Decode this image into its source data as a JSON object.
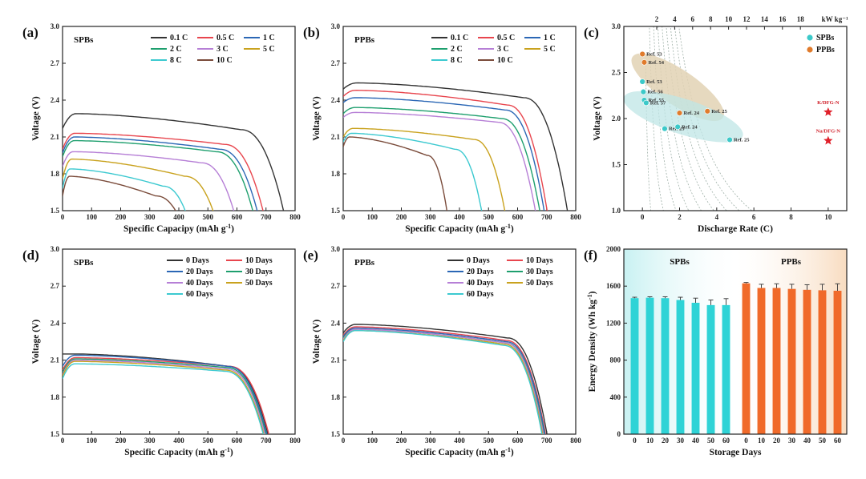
{
  "panels": [
    {
      "label": "(a)",
      "title": "SPBs",
      "type": "line",
      "xlabel": "Specific Capacipy (mAh g",
      "xlabel_sup": "-1",
      "xlabel_end": ")",
      "ylabel": "Voltage (V)",
      "xlim": [
        0,
        800
      ],
      "ylim": [
        1.5,
        3.0
      ],
      "xticks": [
        "0",
        "100",
        "200",
        "300",
        "400",
        "500",
        "600",
        "700",
        "800"
      ],
      "yticks": [
        "1.5",
        "1.8",
        "2.1",
        "2.4",
        "2.7",
        "3.0"
      ],
      "legend_cols": 3,
      "series": [
        {
          "name": "0.1 C",
          "color": "#333333",
          "vstart": 2.17,
          "vpeak": 2.29,
          "vend": 2.16,
          "capacity": 765
        },
        {
          "name": "0.5 C",
          "color": "#e8464e",
          "vstart": 2.0,
          "vpeak": 2.13,
          "vend": 2.04,
          "capacity": 695
        },
        {
          "name": "1 C",
          "color": "#2b67b5",
          "vstart": 1.97,
          "vpeak": 2.1,
          "vend": 2.0,
          "capacity": 675
        },
        {
          "name": "2 C",
          "color": "#1e9f6e",
          "vstart": 1.94,
          "vpeak": 2.07,
          "vend": 1.98,
          "capacity": 660
        },
        {
          "name": "3 C",
          "color": "#b67fd6",
          "vstart": 1.86,
          "vpeak": 1.98,
          "vend": 1.89,
          "capacity": 595
        },
        {
          "name": "5 C",
          "color": "#c9a21e",
          "vstart": 1.76,
          "vpeak": 1.92,
          "vend": 1.78,
          "capacity": 525
        },
        {
          "name": "8 C",
          "color": "#3cc9d0",
          "vstart": 1.68,
          "vpeak": 1.84,
          "vend": 1.7,
          "capacity": 430
        },
        {
          "name": "10 C",
          "color": "#7a4b3a",
          "vstart": 1.62,
          "vpeak": 1.78,
          "vend": 1.62,
          "capacity": 400
        }
      ]
    },
    {
      "label": "(b)",
      "title": "PPBs",
      "type": "line",
      "xlabel": "Specific Capacity (mAh g",
      "xlabel_sup": "-1",
      "xlabel_end": ")",
      "ylabel": "Voltage (V)",
      "xlim": [
        0,
        800
      ],
      "ylim": [
        1.5,
        3.0
      ],
      "xticks": [
        "0",
        "100",
        "200",
        "300",
        "400",
        "500",
        "600",
        "700",
        "800"
      ],
      "yticks": [
        "1.5",
        "1.8",
        "2.1",
        "2.4",
        "2.7",
        "3.0"
      ],
      "legend_cols": 3,
      "series": [
        {
          "name": "0.1 C",
          "color": "#333333",
          "vstart": 2.49,
          "vpeak": 2.54,
          "vend": 2.42,
          "capacity": 775
        },
        {
          "name": "0.5 C",
          "color": "#e8464e",
          "vstart": 2.43,
          "vpeak": 2.48,
          "vend": 2.36,
          "capacity": 705
        },
        {
          "name": "1 C",
          "color": "#2b67b5",
          "vstart": 2.38,
          "vpeak": 2.42,
          "vend": 2.32,
          "capacity": 695
        },
        {
          "name": "2 C",
          "color": "#1e9f6e",
          "vstart": 2.29,
          "vpeak": 2.34,
          "vend": 2.25,
          "capacity": 680
        },
        {
          "name": "3 C",
          "color": "#b67fd6",
          "vstart": 2.26,
          "vpeak": 2.3,
          "vend": 2.22,
          "capacity": 665
        },
        {
          "name": "5 C",
          "color": "#c9a21e",
          "vstart": 2.1,
          "vpeak": 2.17,
          "vend": 2.08,
          "capacity": 560
        },
        {
          "name": "8 C",
          "color": "#3cc9d0",
          "vstart": 2.06,
          "vpeak": 2.13,
          "vend": 2.0,
          "capacity": 480
        },
        {
          "name": "10 C",
          "color": "#7a4b3a",
          "vstart": 2.02,
          "vpeak": 2.1,
          "vend": 1.95,
          "capacity": 360
        }
      ]
    },
    {
      "label": "(c)",
      "type": "scatter",
      "xlabel": "Discharge Rate (C)",
      "ylabel": "Voltage (V)",
      "xlim": [
        -1,
        11
      ],
      "ylim": [
        1.0,
        3.0
      ],
      "xticks": [
        "0",
        "2",
        "4",
        "6",
        "8",
        "10"
      ],
      "xtick_values": [
        0,
        2,
        4,
        6,
        8,
        10
      ],
      "yticks": [
        "1.0",
        "1.5",
        "2.0",
        "2.5",
        "3.0"
      ],
      "top_axis_ticks": [
        "2",
        "4",
        "6",
        "8",
        "10",
        "12",
        "14",
        "16",
        "18"
      ],
      "top_axis_unit": "kW kg⁻¹",
      "legend": [
        "SPBs",
        "PPBs"
      ],
      "colors": {
        "spb": "#3cc9c9",
        "ppb": "#e07b2c",
        "star": "#e0202a",
        "spb_region": "#bfe6e6",
        "ppb_region": "#e2d2b4"
      },
      "spb_points": [
        {
          "x": 0.0,
          "y": 2.4,
          "label": "Ref. 53"
        },
        {
          "x": 0.05,
          "y": 2.29,
          "label": "Ref. 56"
        },
        {
          "x": 0.1,
          "y": 2.2,
          "label": "Ref. 55"
        },
        {
          "x": 0.2,
          "y": 2.17,
          "label": "Ref. 57"
        },
        {
          "x": 1.2,
          "y": 1.89,
          "label": "Ref. 23"
        },
        {
          "x": 1.9,
          "y": 1.91,
          "label": "Ref. 24"
        },
        {
          "x": 4.7,
          "y": 1.77,
          "label": "Ref. 25"
        }
      ],
      "ppb_points": [
        {
          "x": 0.0,
          "y": 2.7,
          "label": "Ref. 53"
        },
        {
          "x": 0.1,
          "y": 2.61,
          "label": "Ref. 54"
        },
        {
          "x": 2.0,
          "y": 2.06,
          "label": "Ref. 24"
        },
        {
          "x": 3.5,
          "y": 2.08,
          "label": "Ref. 25"
        }
      ],
      "stars": [
        {
          "x": 10.0,
          "y": 2.07,
          "label": "K/DFG-N"
        },
        {
          "x": 10.0,
          "y": 1.76,
          "label": "Na/DFG-N"
        }
      ]
    },
    {
      "label": "(d)",
      "title": "SPBs",
      "type": "line",
      "xlabel": "Specific Capacity (mAh g",
      "xlabel_sup": "-1",
      "xlabel_end": ")",
      "ylabel": "Voltage (V)",
      "xlim": [
        0,
        800
      ],
      "ylim": [
        1.5,
        3.0
      ],
      "xticks": [
        "0",
        "100",
        "200",
        "300",
        "400",
        "500",
        "600",
        "700",
        "800"
      ],
      "yticks": [
        "1.5",
        "1.8",
        "2.1",
        "2.4",
        "2.7",
        "3.0"
      ],
      "legend_cols": 2,
      "series": [
        {
          "name": "0 Days",
          "color": "#333333",
          "vstart": 2.15,
          "vpeak": 2.15,
          "vend": 2.05,
          "capacity": 712
        },
        {
          "name": "10 Days",
          "color": "#e8464e",
          "vstart": 2.02,
          "vpeak": 2.12,
          "vend": 2.05,
          "capacity": 715
        },
        {
          "name": "20 Days",
          "color": "#2b67b5",
          "vstart": 2.05,
          "vpeak": 2.14,
          "vend": 2.05,
          "capacity": 708
        },
        {
          "name": "30 Days",
          "color": "#1e9f6e",
          "vstart": 2.0,
          "vpeak": 2.11,
          "vend": 2.04,
          "capacity": 705
        },
        {
          "name": "40 Days",
          "color": "#b67fd6",
          "vstart": 1.98,
          "vpeak": 2.1,
          "vend": 2.03,
          "capacity": 702
        },
        {
          "name": "50 Days",
          "color": "#c9a21e",
          "vstart": 1.97,
          "vpeak": 2.09,
          "vend": 2.02,
          "capacity": 698
        },
        {
          "name": "60 Days",
          "color": "#3cc9d0",
          "vstart": 1.95,
          "vpeak": 2.07,
          "vend": 2.01,
          "capacity": 696
        }
      ]
    },
    {
      "label": "(e)",
      "title": "PPBs",
      "type": "line",
      "xlabel": "Specific Capacity (mAh g",
      "xlabel_sup": "-1",
      "xlabel_end": ")",
      "ylabel": "Voltage (V)",
      "xlim": [
        0,
        800
      ],
      "ylim": [
        1.5,
        3.0
      ],
      "xticks": [
        "0",
        "100",
        "200",
        "300",
        "400",
        "500",
        "600",
        "700",
        "800"
      ],
      "yticks": [
        "1.5",
        "1.8",
        "2.1",
        "2.4",
        "2.7",
        "3.0"
      ],
      "legend_cols": 2,
      "series": [
        {
          "name": "0 Days",
          "color": "#333333",
          "vstart": 2.32,
          "vpeak": 2.39,
          "vend": 2.28,
          "capacity": 705
        },
        {
          "name": "10 Days",
          "color": "#e8464e",
          "vstart": 2.3,
          "vpeak": 2.37,
          "vend": 2.26,
          "capacity": 700
        },
        {
          "name": "20 Days",
          "color": "#2b67b5",
          "vstart": 2.29,
          "vpeak": 2.36,
          "vend": 2.25,
          "capacity": 698
        },
        {
          "name": "30 Days",
          "color": "#1e9f6e",
          "vstart": 2.28,
          "vpeak": 2.35,
          "vend": 2.24,
          "capacity": 695
        },
        {
          "name": "40 Days",
          "color": "#b67fd6",
          "vstart": 2.27,
          "vpeak": 2.35,
          "vend": 2.24,
          "capacity": 693
        },
        {
          "name": "50 Days",
          "color": "#c9a21e",
          "vstart": 2.26,
          "vpeak": 2.34,
          "vend": 2.23,
          "capacity": 690
        },
        {
          "name": "60 Days",
          "color": "#3cc9d0",
          "vstart": 2.25,
          "vpeak": 2.34,
          "vend": 2.22,
          "capacity": 688
        }
      ]
    },
    {
      "label": "(f)",
      "type": "bar",
      "xlabel": "Storage Days",
      "ylabel": "Energy Density (Wh kg",
      "ylabel_sup": "-1",
      "ylabel_end": ")",
      "ylim": [
        0,
        2000
      ],
      "yticks": [
        "0",
        "400",
        "800",
        "1200",
        "1600",
        "2000"
      ],
      "groups": [
        {
          "name": "SPBs",
          "color": "#2fd3d6",
          "bg": "#c8f1f2",
          "categories": [
            "0",
            "10",
            "20",
            "30",
            "40",
            "50",
            "60"
          ],
          "values": [
            1470,
            1475,
            1470,
            1450,
            1420,
            1395,
            1395
          ],
          "errors": [
            10,
            10,
            15,
            30,
            50,
            55,
            70
          ]
        },
        {
          "name": "PPBs",
          "color": "#f06a2a",
          "bg": "#f8dcc0",
          "categories": [
            "0",
            "10",
            "20",
            "30",
            "40",
            "50",
            "60"
          ],
          "values": [
            1630,
            1580,
            1580,
            1570,
            1560,
            1555,
            1550
          ],
          "errors": [
            10,
            40,
            45,
            50,
            55,
            65,
            75
          ]
        }
      ]
    }
  ]
}
